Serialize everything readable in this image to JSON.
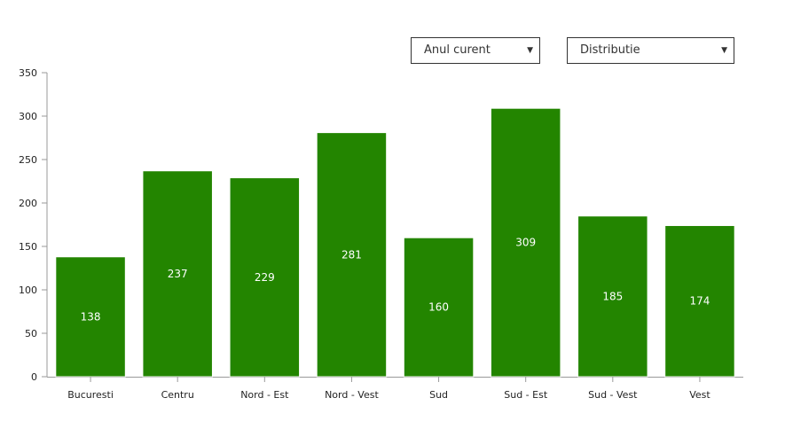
{
  "controls": {
    "year_select": {
      "value": "Anul curent",
      "icon": "caret-down-icon"
    },
    "type_select": {
      "value": "Distributie",
      "icon": "caret-down-icon"
    }
  },
  "colors": {
    "bar": "#238500",
    "bar_border": "#ffffff",
    "axis": "#999999",
    "text": "#222222"
  },
  "chart_data": {
    "type": "bar",
    "categories": [
      "Bucuresti",
      "Centru",
      "Nord - Est",
      "Nord - Vest",
      "Sud",
      "Sud - Est",
      "Sud - Vest",
      "Vest"
    ],
    "values": [
      138,
      237,
      229,
      281,
      160,
      309,
      185,
      174
    ],
    "title": "",
    "xlabel": "",
    "ylabel": "",
    "ylim": [
      0,
      350
    ],
    "yticks": [
      0,
      50,
      100,
      150,
      200,
      250,
      300,
      350
    ],
    "data_labels": true,
    "grid": false
  }
}
